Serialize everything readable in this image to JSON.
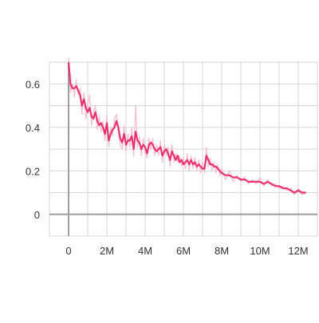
{
  "chart_data": {
    "type": "line",
    "title": "",
    "xlabel": "",
    "ylabel": "",
    "x_tick_labels": [
      "0",
      "2M",
      "4M",
      "6M",
      "8M",
      "10M",
      "12M"
    ],
    "x_ticks": [
      0,
      2000000,
      4000000,
      6000000,
      8000000,
      10000000,
      12000000
    ],
    "y_tick_labels": [
      "0",
      "0.2",
      "0.4",
      "0.6"
    ],
    "y_ticks": [
      0,
      0.2,
      0.4,
      0.6
    ],
    "xlim": [
      -1000000,
      13000000
    ],
    "ylim": [
      -0.1,
      0.7
    ],
    "grid": true,
    "legend": "none",
    "colors": {
      "smoothed": "#e8336f",
      "raw": "#f6b8cc",
      "grid": "#d6d6d6",
      "axis": "#9e9e9e"
    },
    "series": [
      {
        "role": "smoothed",
        "x": [
          0,
          100000,
          200000,
          300000,
          400000,
          500000,
          600000,
          700000,
          800000,
          900000,
          1000000,
          1100000,
          1200000,
          1300000,
          1400000,
          1500000,
          1600000,
          1700000,
          1800000,
          1900000,
          2000000,
          2100000,
          2200000,
          2300000,
          2400000,
          2500000,
          2600000,
          2700000,
          2800000,
          2900000,
          3000000,
          3100000,
          3200000,
          3300000,
          3400000,
          3500000,
          3600000,
          3700000,
          3800000,
          3900000,
          4000000,
          4100000,
          4200000,
          4300000,
          4400000,
          4500000,
          4600000,
          4700000,
          4800000,
          4900000,
          5000000,
          5100000,
          5200000,
          5300000,
          5400000,
          5500000,
          5600000,
          5700000,
          5800000,
          5900000,
          6000000,
          6100000,
          6200000,
          6300000,
          6400000,
          6500000,
          6600000,
          6700000,
          6800000,
          6900000,
          7000000,
          7100000,
          7200000,
          7300000,
          7400000,
          7500000,
          7600000,
          7700000,
          7800000,
          7900000,
          8000000,
          8200000,
          8400000,
          8600000,
          8800000,
          9000000,
          9200000,
          9400000,
          9600000,
          9800000,
          10000000,
          10200000,
          10400000,
          10600000,
          10800000,
          11000000,
          11200000,
          11400000,
          11600000,
          11800000,
          12000000,
          12200000,
          12400000
        ],
        "y": [
          0.7,
          0.6,
          0.58,
          0.58,
          0.59,
          0.57,
          0.55,
          0.5,
          0.53,
          0.49,
          0.47,
          0.49,
          0.45,
          0.44,
          0.47,
          0.43,
          0.41,
          0.42,
          0.4,
          0.37,
          0.42,
          0.34,
          0.37,
          0.39,
          0.4,
          0.43,
          0.4,
          0.35,
          0.33,
          0.37,
          0.32,
          0.34,
          0.34,
          0.36,
          0.3,
          0.38,
          0.34,
          0.33,
          0.3,
          0.32,
          0.31,
          0.28,
          0.32,
          0.33,
          0.32,
          0.3,
          0.29,
          0.3,
          0.31,
          0.27,
          0.29,
          0.3,
          0.28,
          0.25,
          0.29,
          0.27,
          0.25,
          0.27,
          0.24,
          0.25,
          0.23,
          0.24,
          0.25,
          0.23,
          0.25,
          0.23,
          0.24,
          0.22,
          0.23,
          0.22,
          0.21,
          0.21,
          0.27,
          0.25,
          0.23,
          0.23,
          0.22,
          0.22,
          0.21,
          0.2,
          0.19,
          0.18,
          0.18,
          0.17,
          0.17,
          0.16,
          0.16,
          0.15,
          0.15,
          0.15,
          0.15,
          0.14,
          0.15,
          0.14,
          0.13,
          0.13,
          0.12,
          0.12,
          0.11,
          0.1,
          0.11,
          0.1,
          0.1
        ]
      },
      {
        "role": "raw",
        "x": [
          0,
          100000,
          200000,
          300000,
          400000,
          500000,
          600000,
          700000,
          800000,
          900000,
          1000000,
          1100000,
          1200000,
          1300000,
          1400000,
          1500000,
          1600000,
          1700000,
          1800000,
          1900000,
          2000000,
          2100000,
          2200000,
          2300000,
          2400000,
          2500000,
          2600000,
          2700000,
          2800000,
          2900000,
          3000000,
          3100000,
          3200000,
          3300000,
          3400000,
          3500000,
          3600000,
          3700000,
          3800000,
          3900000,
          4000000,
          4100000,
          4200000,
          4300000,
          4400000,
          4500000,
          4600000,
          4700000,
          4800000,
          4900000,
          5000000,
          5100000,
          5200000,
          5300000,
          5400000,
          5500000,
          5600000,
          5700000,
          5800000,
          5900000,
          6000000,
          6100000,
          6200000,
          6300000,
          6400000,
          6500000,
          6600000,
          6700000,
          6800000,
          6900000,
          7000000,
          7100000,
          7200000,
          7300000,
          7400000,
          7500000,
          7600000,
          7700000,
          7800000,
          7900000,
          8000000,
          8200000,
          8400000,
          8600000,
          8800000,
          9000000,
          9200000,
          9400000,
          9600000,
          9800000,
          10000000,
          10200000,
          10400000,
          10600000,
          10800000,
          11000000,
          11200000,
          11400000,
          11600000,
          11800000,
          12000000,
          12200000,
          12400000
        ],
        "y": [
          0.72,
          0.56,
          0.6,
          0.54,
          0.62,
          0.55,
          0.58,
          0.46,
          0.56,
          0.44,
          0.51,
          0.55,
          0.41,
          0.47,
          0.5,
          0.39,
          0.45,
          0.38,
          0.43,
          0.34,
          0.46,
          0.31,
          0.4,
          0.36,
          0.44,
          0.46,
          0.37,
          0.32,
          0.3,
          0.41,
          0.29,
          0.37,
          0.31,
          0.4,
          0.27,
          0.5,
          0.31,
          0.36,
          0.27,
          0.35,
          0.28,
          0.26,
          0.35,
          0.3,
          0.35,
          0.27,
          0.32,
          0.27,
          0.34,
          0.24,
          0.32,
          0.27,
          0.31,
          0.22,
          0.32,
          0.24,
          0.28,
          0.24,
          0.27,
          0.22,
          0.26,
          0.21,
          0.28,
          0.2,
          0.27,
          0.21,
          0.26,
          0.2,
          0.25,
          0.19,
          0.24,
          0.19,
          0.31,
          0.22,
          0.26,
          0.2,
          0.24,
          0.19,
          0.23,
          0.18,
          0.21,
          0.16,
          0.2,
          0.15,
          0.18,
          0.15,
          0.17,
          0.14,
          0.16,
          0.14,
          0.17,
          0.13,
          0.16,
          0.13,
          0.14,
          0.12,
          0.13,
          0.11,
          0.12,
          0.09,
          0.12,
          0.09,
          0.1
        ]
      }
    ]
  }
}
